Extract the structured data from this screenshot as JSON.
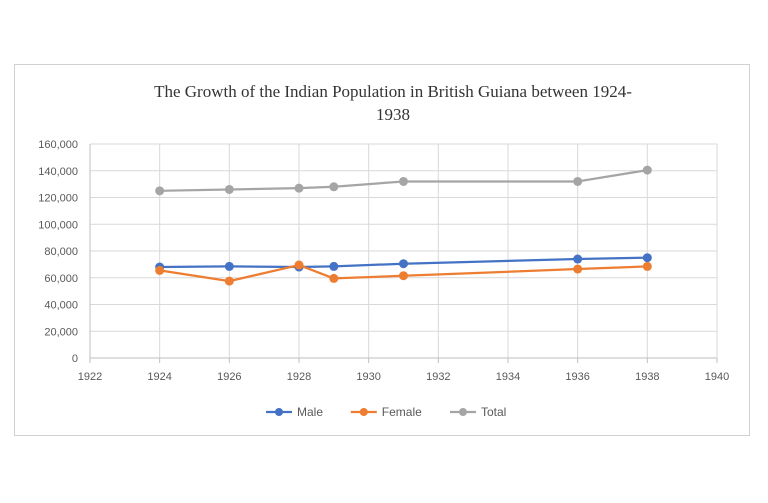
{
  "chart_data": {
    "type": "scatter",
    "title_line1": "The Growth of the Indian Population in British Guiana between 1924-",
    "title_line2": "1938",
    "xlabel": "",
    "ylabel": "",
    "xlim": [
      1922,
      1940
    ],
    "ylim": [
      0,
      160000
    ],
    "x_ticks": [
      1922,
      1924,
      1926,
      1928,
      1930,
      1932,
      1934,
      1936,
      1938,
      1940
    ],
    "x_tick_labels": [
      "1922",
      "1924",
      "1926",
      "1928",
      "1930",
      "1932",
      "1934",
      "1936",
      "1938",
      "1940"
    ],
    "y_ticks": [
      0,
      20000,
      40000,
      60000,
      80000,
      100000,
      120000,
      140000,
      160000
    ],
    "y_tick_labels": [
      "0",
      "20,000",
      "40,000",
      "60,000",
      "80,000",
      "100,000",
      "120,000",
      "140,000",
      "160,000"
    ],
    "grid": true,
    "legend_position": "bottom",
    "series": [
      {
        "name": "Male",
        "color": "#4472c4",
        "x": [
          1924,
          1926,
          1928,
          1929,
          1931,
          1936,
          1938
        ],
        "y": [
          68000,
          68500,
          68000,
          68500,
          70500,
          74000,
          75000
        ]
      },
      {
        "name": "Female",
        "color": "#ed7d31",
        "x": [
          1924,
          1926,
          1928,
          1929,
          1931,
          1936,
          1938
        ],
        "y": [
          65500,
          57500,
          69500,
          59500,
          61500,
          66500,
          68500
        ]
      },
      {
        "name": "Total",
        "color": "#a5a5a5",
        "x": [
          1924,
          1926,
          1928,
          1929,
          1931,
          1936,
          1938
        ],
        "y": [
          125000,
          126000,
          127000,
          128000,
          132000,
          132000,
          140500
        ]
      }
    ]
  }
}
